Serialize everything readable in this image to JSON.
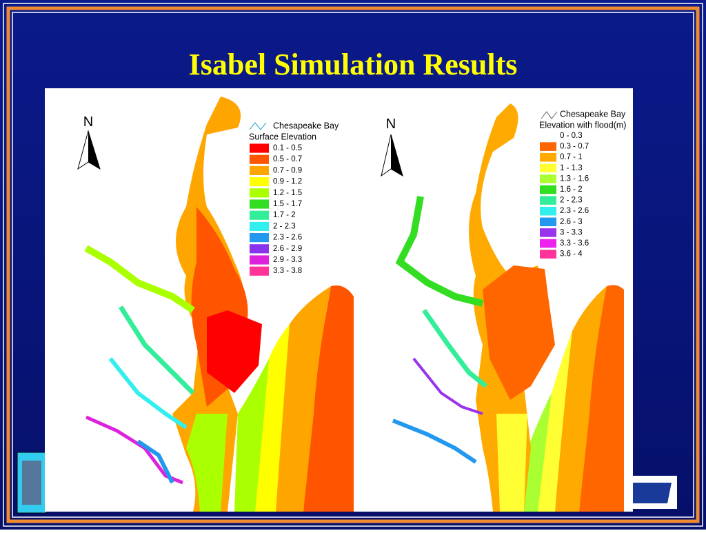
{
  "title": "Isabel Simulation Results",
  "left_map": {
    "north": "N",
    "legend_title": "Chesapeake Bay",
    "legend_subtitle": "Surface Elevation",
    "items": [
      {
        "label": "0.1 - 0.5",
        "color": "#ff0000"
      },
      {
        "label": "0.5 - 0.7",
        "color": "#ff5500"
      },
      {
        "label": "0.7 - 0.9",
        "color": "#ffa500"
      },
      {
        "label": "0.9 - 1.2",
        "color": "#ffff00"
      },
      {
        "label": "1.2 - 1.5",
        "color": "#aaff00"
      },
      {
        "label": "1.5 - 1.7",
        "color": "#33dd22"
      },
      {
        "label": "1.7 - 2",
        "color": "#33ee99"
      },
      {
        "label": "2 - 2.3",
        "color": "#33eeee"
      },
      {
        "label": "2.3 - 2.6",
        "color": "#2299ee"
      },
      {
        "label": "2.6 - 2.9",
        "color": "#8833ee"
      },
      {
        "label": "2.9 - 3.3",
        "color": "#dd22dd"
      },
      {
        "label": "3.3 - 3.8",
        "color": "#ff3399"
      }
    ]
  },
  "right_map": {
    "north": "N",
    "legend_title": "Chesapeake Bay",
    "legend_subtitle": "Elevation with flood(m)",
    "items": [
      {
        "label": "0 - 0.3"
      },
      {
        "label": "0.3 - 0.7",
        "color": "#ff6600"
      },
      {
        "label": "0.7 - 1",
        "color": "#ffaa00"
      },
      {
        "label": "1 - 1.3",
        "color": "#ffff33"
      },
      {
        "label": "1.3 - 1.6",
        "color": "#aaff33"
      },
      {
        "label": "1.6 - 2",
        "color": "#33dd22"
      },
      {
        "label": "2 - 2.3",
        "color": "#33ee99"
      },
      {
        "label": "2.3 - 2.6",
        "color": "#33eeee"
      },
      {
        "label": "2.6 - 3",
        "color": "#2299ee"
      },
      {
        "label": "3 - 3.3",
        "color": "#9933ee"
      },
      {
        "label": "3.3 - 3.6",
        "color": "#ee22ee"
      },
      {
        "label": "3.6 - 4",
        "color": "#ff3399"
      }
    ]
  }
}
